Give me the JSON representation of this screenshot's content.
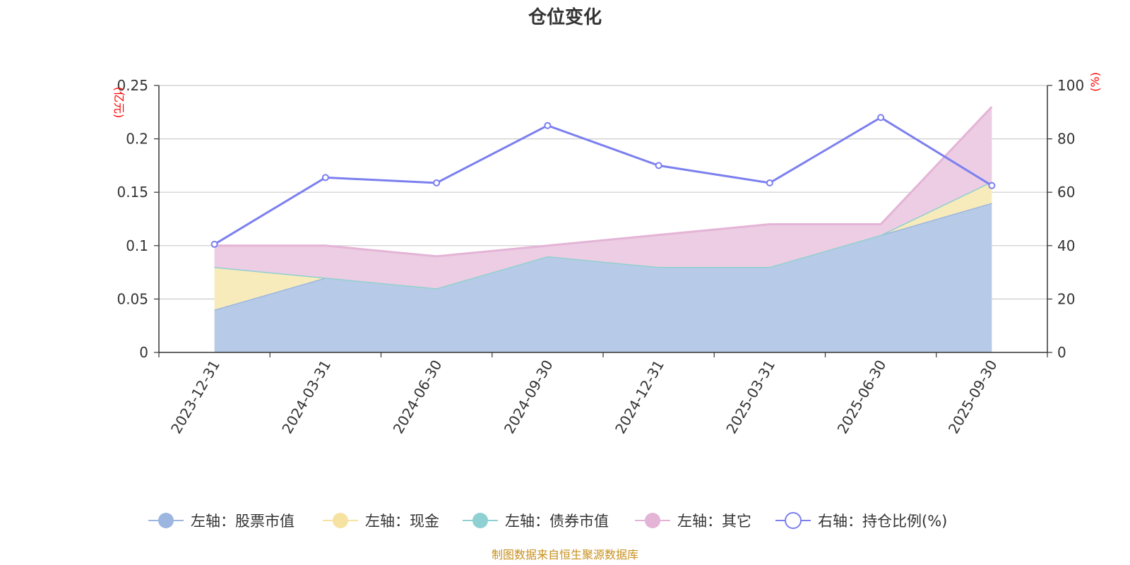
{
  "chart_data": {
    "type": "area",
    "title": "仓位变化",
    "categories": [
      "2023-12-31",
      "2024-03-31",
      "2024-06-30",
      "2024-09-30",
      "2024-12-31",
      "2025-03-31",
      "2025-06-30",
      "2025-09-30"
    ],
    "left_axis": {
      "unit": "(亿元)",
      "ylim": [
        0,
        0.25
      ],
      "ticks": [
        0,
        0.05,
        0.1,
        0.15,
        0.2,
        0.25
      ],
      "tick_labels": [
        "0",
        "0.05",
        "0.1",
        "0.15",
        "0.2",
        "0.25"
      ]
    },
    "right_axis": {
      "unit": "(%)",
      "ylim": [
        0,
        100
      ],
      "ticks": [
        0,
        20,
        40,
        60,
        80,
        100
      ],
      "tick_labels": [
        "0",
        "20",
        "40",
        "60",
        "80",
        "100"
      ]
    },
    "stacked_series": [
      {
        "name": "左轴：股票市值",
        "color": "#9db6e0",
        "fill": "#b7cbe8",
        "values": [
          0.04,
          0.07,
          0.06,
          0.09,
          0.08,
          0.08,
          0.11,
          0.14
        ]
      },
      {
        "name": "左轴：现金",
        "color": "#f6e3a1",
        "fill": "#f8ebbb",
        "values": [
          0.04,
          0.0,
          0.0,
          0.0,
          0.0,
          0.0,
          0.0,
          0.02
        ]
      },
      {
        "name": "左轴：债券市值",
        "color": "#8fd0d2",
        "fill": "#bfe4e4",
        "values": [
          0,
          0,
          0,
          0,
          0,
          0,
          0,
          0
        ]
      },
      {
        "name": "左轴：其它",
        "color": "#e4b4d6",
        "fill": "#eccde3",
        "values": [
          0.02,
          0.03,
          0.03,
          0.01,
          0.03,
          0.04,
          0.01,
          0.07
        ]
      }
    ],
    "line_series": {
      "name": "右轴：持仓比例(%)",
      "color": "#7b7fef",
      "values": [
        40.5,
        65.5,
        63.5,
        85.0,
        70.0,
        63.5,
        88.0,
        62.5
      ]
    }
  },
  "source_text": "制图数据来自恒生聚源数据库"
}
